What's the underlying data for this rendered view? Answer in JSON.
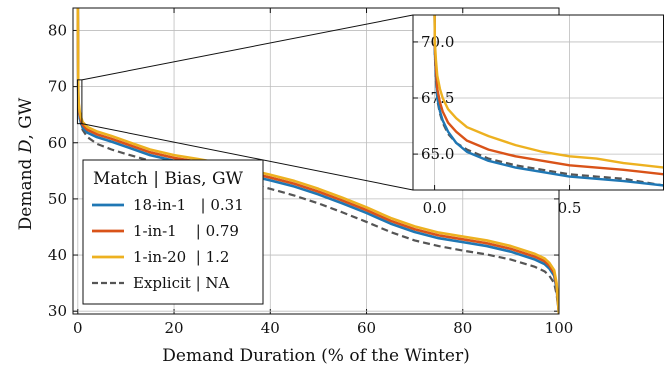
{
  "chart_data": [
    {
      "type": "line",
      "title": "",
      "xlabel": "Demand Duration (% of the Winter)",
      "ylabel_prefix": "Demand ",
      "ylabel_var": "D",
      "ylabel_suffix": ", GW",
      "xlim": [
        -1,
        100
      ],
      "ylim": [
        29.5,
        84
      ],
      "xticks": [
        0,
        20,
        40,
        60,
        80,
        100
      ],
      "yticks": [
        30,
        40,
        50,
        60,
        70,
        80
      ],
      "grid": true,
      "legend": {
        "position": "bottom-left",
        "title": "Match | Bias, GW",
        "entries": [
          {
            "series": 0,
            "label": "18-in-1   | 0.31"
          },
          {
            "series": 1,
            "label": "1-in-1    | 0.79"
          },
          {
            "series": 2,
            "label": "1-in-20  | 1.2"
          },
          {
            "series": 3,
            "label": "Explicit | NA"
          }
        ]
      },
      "series": [
        {
          "name": "18-in-1",
          "bias": "0.31",
          "color": "#1f77b4",
          "dash": "solid",
          "x": [
            0,
            0.1,
            0.2,
            0.4,
            0.7,
            1,
            2,
            4,
            7,
            10,
            15,
            20,
            25,
            30,
            35,
            40,
            45,
            50,
            55,
            60,
            65,
            70,
            75,
            80,
            85,
            90,
            95,
            97,
            98,
            99,
            99.5,
            100
          ],
          "y": [
            84,
            68,
            66,
            64.5,
            63.5,
            62.7,
            61.8,
            61,
            60.2,
            59.3,
            57.8,
            56.8,
            56.1,
            55.3,
            54.3,
            53.3,
            52.2,
            50.8,
            49.2,
            47.5,
            45.6,
            44.1,
            43.0,
            42.3,
            41.6,
            40.6,
            39.2,
            38.4,
            37.6,
            36.3,
            34,
            29.5
          ]
        },
        {
          "name": "1-in-1",
          "bias": "0.79",
          "color": "#d95319",
          "dash": "solid",
          "x": [
            0,
            0.1,
            0.2,
            0.4,
            0.7,
            1,
            2,
            4,
            7,
            10,
            15,
            20,
            25,
            30,
            35,
            40,
            45,
            50,
            55,
            60,
            65,
            70,
            75,
            80,
            85,
            90,
            95,
            97,
            98,
            99,
            99.5,
            100
          ],
          "y": [
            84,
            68.5,
            66.5,
            65,
            64,
            63.2,
            62.3,
            61.5,
            60.7,
            59.8,
            58.3,
            57.3,
            56.6,
            55.8,
            54.8,
            53.8,
            52.7,
            51.3,
            49.7,
            48.0,
            46.1,
            44.6,
            43.5,
            42.8,
            42.1,
            41.1,
            39.7,
            38.9,
            38.1,
            36.8,
            34.5,
            29.5
          ]
        },
        {
          "name": "1-in-20",
          "bias": "1.2",
          "color": "#edb120",
          "dash": "solid",
          "x": [
            0,
            0.1,
            0.2,
            0.4,
            0.7,
            1,
            2,
            4,
            7,
            10,
            15,
            20,
            25,
            30,
            35,
            40,
            45,
            50,
            55,
            60,
            65,
            70,
            75,
            80,
            85,
            90,
            95,
            97,
            98,
            99,
            99.5,
            100
          ],
          "y": [
            84,
            69,
            67,
            65.5,
            64.5,
            63.7,
            62.8,
            62,
            61.2,
            60.3,
            58.8,
            57.8,
            57.1,
            56.3,
            55.3,
            54.3,
            53.2,
            51.8,
            50.2,
            48.5,
            46.6,
            45.1,
            44.0,
            43.3,
            42.6,
            41.6,
            40.2,
            39.4,
            38.6,
            37.3,
            35,
            29.5
          ]
        },
        {
          "name": "Explicit",
          "bias": "NA",
          "color": "#555555",
          "dash": "dashed",
          "x": [
            0,
            0.1,
            0.2,
            0.4,
            0.7,
            1,
            2,
            4,
            7,
            10,
            15,
            20,
            25,
            30,
            35,
            40,
            45,
            50,
            55,
            60,
            65,
            70,
            75,
            80,
            85,
            90,
            95,
            97,
            98,
            99,
            99.5,
            100
          ],
          "y": [
            84,
            68,
            66,
            64.3,
            63.2,
            62.3,
            61.0,
            59.8,
            58.8,
            58.0,
            56.8,
            55.6,
            54.7,
            53.8,
            52.8,
            51.8,
            50.6,
            49.2,
            47.6,
            45.9,
            44.1,
            42.6,
            41.6,
            40.8,
            40.1,
            39.2,
            37.9,
            37.1,
            36.3,
            35.0,
            33,
            29.5
          ]
        }
      ]
    },
    {
      "type": "line",
      "title": "",
      "xlabel": "",
      "ylabel": "",
      "xlim": [
        -0.08,
        0.85
      ],
      "ylim": [
        63.4,
        71.2
      ],
      "xticks": [
        0.0,
        0.5
      ],
      "xtick_labels": [
        "0.0",
        "0.5"
      ],
      "yticks": [
        65.0,
        67.5,
        70.0
      ],
      "ytick_labels": [
        "65.0",
        "67.5",
        "70.0"
      ],
      "grid": true,
      "inset_of": 0,
      "series": [
        {
          "name": "18-in-1",
          "color": "#1f77b4",
          "dash": "solid",
          "x": [
            0,
            0.001,
            0.005,
            0.01,
            0.02,
            0.03,
            0.05,
            0.08,
            0.12,
            0.2,
            0.3,
            0.4,
            0.5,
            0.6,
            0.7,
            0.85
          ],
          "y": [
            71.2,
            69.5,
            68.5,
            67.5,
            66.9,
            66.5,
            66.0,
            65.5,
            65.1,
            64.7,
            64.4,
            64.2,
            64.0,
            63.9,
            63.8,
            63.6
          ]
        },
        {
          "name": "1-in-1",
          "color": "#d95319",
          "dash": "solid",
          "x": [
            0,
            0.001,
            0.005,
            0.01,
            0.02,
            0.03,
            0.05,
            0.08,
            0.12,
            0.2,
            0.3,
            0.4,
            0.5,
            0.6,
            0.7,
            0.85
          ],
          "y": [
            71.2,
            69.8,
            68.8,
            67.9,
            67.3,
            66.9,
            66.4,
            66.0,
            65.6,
            65.2,
            64.9,
            64.7,
            64.5,
            64.4,
            64.3,
            64.1
          ]
        },
        {
          "name": "1-in-20",
          "color": "#edb120",
          "dash": "solid",
          "x": [
            0,
            0.001,
            0.005,
            0.01,
            0.02,
            0.03,
            0.05,
            0.08,
            0.12,
            0.2,
            0.3,
            0.4,
            0.5,
            0.6,
            0.7,
            0.85
          ],
          "y": [
            71.2,
            70.0,
            69.2,
            68.5,
            67.9,
            67.5,
            67.0,
            66.6,
            66.2,
            65.8,
            65.4,
            65.1,
            64.9,
            64.8,
            64.6,
            64.4
          ]
        },
        {
          "name": "Explicit",
          "color": "#555555",
          "dash": "dashed",
          "x": [
            0,
            0.001,
            0.005,
            0.01,
            0.02,
            0.03,
            0.05,
            0.08,
            0.12,
            0.2,
            0.3,
            0.4,
            0.5,
            0.6,
            0.7,
            0.85
          ],
          "y": [
            71.2,
            69.4,
            68.3,
            67.4,
            66.8,
            66.4,
            65.9,
            65.5,
            65.2,
            64.8,
            64.5,
            64.3,
            64.1,
            64.0,
            63.9,
            63.6
          ]
        }
      ]
    }
  ]
}
